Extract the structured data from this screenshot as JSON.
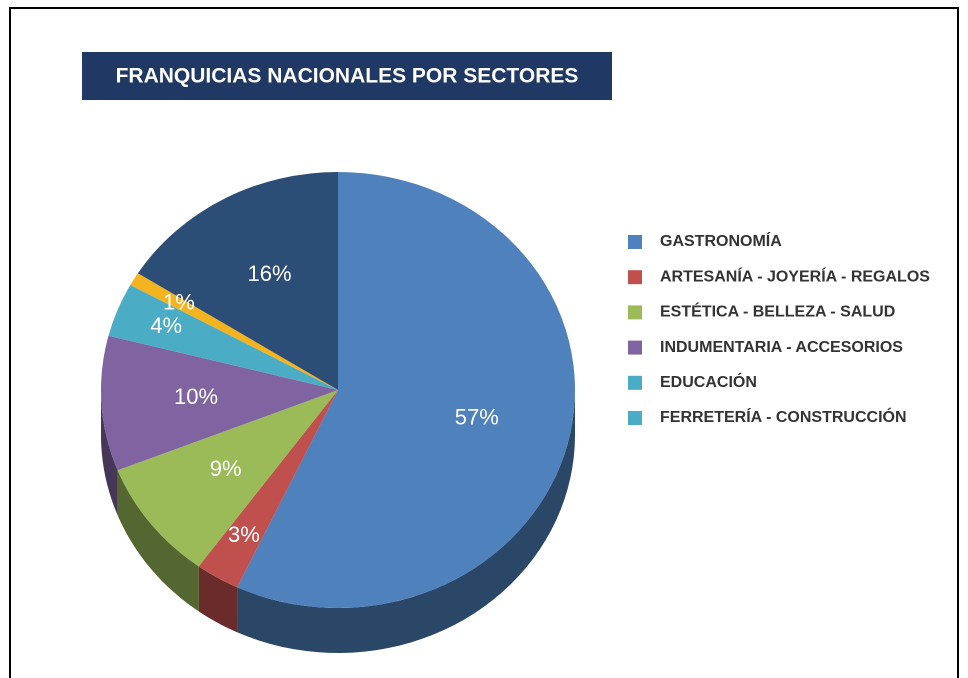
{
  "chart_data": {
    "type": "pie",
    "title": "FRANQUICIAS NACIONALES POR SECTORES",
    "categories": [
      "GASTRONOMÍA",
      "ARTESANÍA - JOYERÍA - REGALOS",
      "ESTÉTICA - BELLEZA - SALUD",
      "INDUMENTARIA - ACCESORIOS",
      "EDUCACIÓN",
      "FERRETERÍA - CONSTRUCCIÓN",
      null
    ],
    "values": [
      57,
      3,
      9,
      10,
      4,
      1,
      16
    ],
    "value_labels": [
      "57%",
      "3%",
      "9%",
      "10%",
      "4%",
      "1%",
      "16%"
    ],
    "colors": [
      "#4f81bd",
      "#c0504d",
      "#9bbb59",
      "#8064a2",
      "#4bacc6",
      "#f5b41e",
      "#2c4d75"
    ],
    "legend_colors": [
      "#4f81bd",
      "#c0504d",
      "#9bbb59",
      "#8064a2",
      "#4bacc6",
      "#4bacc6"
    ],
    "legend": "right"
  }
}
